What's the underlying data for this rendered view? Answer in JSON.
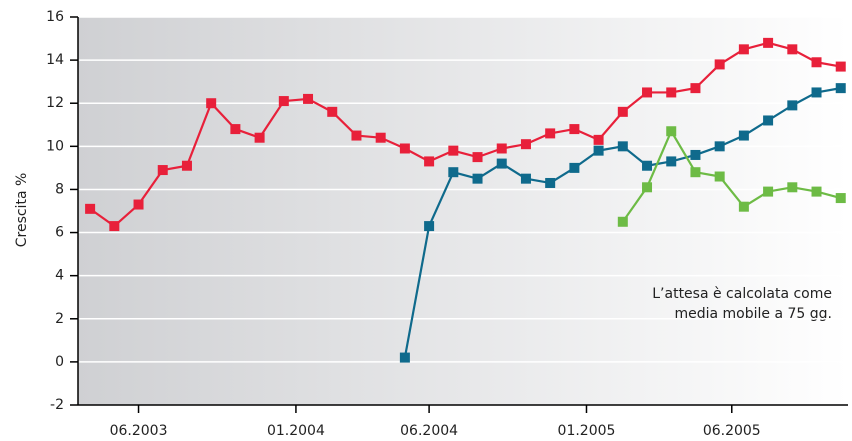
{
  "chart_data": {
    "type": "line",
    "y_label": "Crescita %",
    "annotation": [
      "L’attesa è calcolata come",
      "media mobile a 75 gg."
    ],
    "x": [
      0,
      1,
      2,
      3,
      4,
      5,
      6,
      7,
      8,
      9,
      10,
      11,
      12,
      13,
      14,
      15,
      16,
      17,
      18,
      19,
      20,
      21,
      22,
      23,
      24,
      25,
      26,
      27,
      28,
      29,
      30,
      31
    ],
    "xlim": [
      -0.5,
      31.3
    ],
    "xticks": [
      {
        "value": 2,
        "label": "06.2003"
      },
      {
        "value": 8.5,
        "label": "01.2004"
      },
      {
        "value": 14,
        "label": "06.2004"
      },
      {
        "value": 20.5,
        "label": "01.2005"
      },
      {
        "value": 26.5,
        "label": "06.2005"
      }
    ],
    "ylim": [
      -2,
      16
    ],
    "yticks": [
      -2,
      0,
      2,
      4,
      6,
      8,
      10,
      12,
      14,
      16
    ],
    "grid": true,
    "series": [
      {
        "color": "#e8203a",
        "values": [
          7.1,
          6.3,
          7.3,
          8.9,
          9.1,
          12.0,
          10.8,
          10.4,
          12.1,
          12.2,
          11.6,
          10.5,
          10.4,
          9.9,
          9.3,
          9.8,
          9.5,
          9.9,
          10.1,
          10.6,
          10.8,
          10.3,
          11.6,
          12.5,
          12.5,
          12.7,
          13.8,
          14.5,
          14.8,
          14.5,
          13.9,
          13.7
        ]
      },
      {
        "color": "#0f6a8c",
        "values": [
          null,
          null,
          null,
          null,
          null,
          null,
          null,
          null,
          null,
          null,
          null,
          null,
          null,
          0.2,
          6.3,
          8.8,
          8.5,
          9.2,
          8.5,
          8.3,
          9.0,
          9.8,
          10.0,
          9.1,
          9.3,
          9.6,
          10.0,
          10.5,
          11.2,
          11.9,
          12.5,
          12.7
        ]
      },
      {
        "color": "#6dbb45",
        "values": [
          null,
          null,
          null,
          null,
          null,
          null,
          null,
          null,
          null,
          null,
          null,
          null,
          null,
          null,
          null,
          null,
          null,
          null,
          null,
          null,
          null,
          null,
          6.5,
          8.1,
          10.7,
          8.8,
          8.6,
          7.2,
          7.9,
          8.1,
          7.9,
          7.6
        ]
      }
    ]
  }
}
